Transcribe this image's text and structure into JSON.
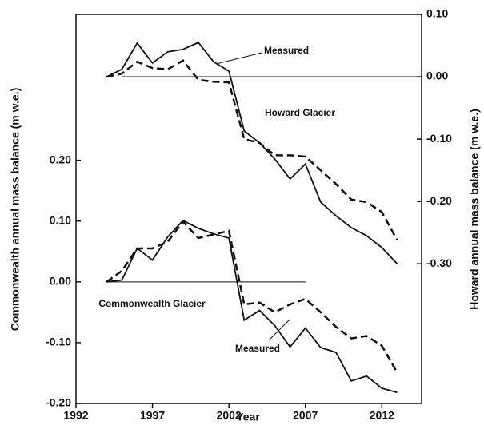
{
  "chart_data": {
    "type": "line",
    "x_label": "Year",
    "y_label": "Commonwealth annual mass balance (m w.e.)",
    "y2_label": "Howard  annual mass balance (m w.e.)",
    "x": [
      1994,
      1995,
      1996,
      1997,
      1998,
      1999,
      2000,
      2001,
      2002,
      2003,
      2004,
      2005,
      2006,
      2007,
      2008,
      2009,
      2010,
      2011,
      2012,
      2013
    ],
    "series": [
      {
        "color": "#111111",
        "dash": false,
        "axis": "y2",
        "values": [
          0.0,
          0.012,
          0.054,
          0.022,
          0.04,
          0.044,
          0.055,
          0.024,
          0.009,
          -0.087,
          -0.106,
          -0.132,
          -0.164,
          -0.14,
          -0.201,
          -0.223,
          -0.242,
          -0.255,
          -0.274,
          -0.3
        ]
      },
      {
        "color": "#111111",
        "dash": true,
        "axis": "y2",
        "values": [
          0.0,
          0.005,
          0.024,
          0.014,
          0.012,
          0.026,
          -0.005,
          -0.008,
          -0.009,
          -0.1,
          -0.106,
          -0.126,
          -0.126,
          -0.128,
          -0.15,
          -0.172,
          -0.197,
          -0.201,
          -0.217,
          -0.262
        ]
      },
      {
        "color": "#111111",
        "dash": false,
        "axis": "y",
        "values": [
          0.0,
          0.003,
          0.055,
          0.036,
          0.074,
          0.101,
          0.088,
          0.079,
          0.072,
          -0.063,
          -0.047,
          -0.072,
          -0.107,
          -0.076,
          -0.108,
          -0.116,
          -0.163,
          -0.155,
          -0.175,
          -0.182
        ]
      },
      {
        "color": "#111111",
        "dash": true,
        "axis": "y",
        "values": [
          0.0,
          0.018,
          0.055,
          0.055,
          0.066,
          0.099,
          0.072,
          0.078,
          0.084,
          -0.037,
          -0.034,
          -0.05,
          -0.037,
          -0.028,
          -0.05,
          -0.074,
          -0.093,
          -0.089,
          -0.105,
          -0.149
        ]
      }
    ],
    "reference_lines": [
      {
        "axis": "y2",
        "value": 0,
        "from": 1995,
        "to": 2014.6
      },
      {
        "axis": "y",
        "value": 0,
        "from": 1994,
        "to": 2007
      }
    ],
    "annotations": [
      "Measured",
      "Howard Glacier",
      "Commonwealth Glacier",
      "Measured"
    ],
    "xlim": [
      1992,
      2014.6
    ],
    "xticks": [
      1992,
      1997,
      2002,
      2007,
      2012
    ],
    "ylim": [
      -0.2,
      0.44
    ],
    "yticks": [
      {
        "value": -0.2,
        "label": "-0.20"
      },
      {
        "value": -0.1,
        "label": "-0.10"
      },
      {
        "value": 0,
        "label": "0.00"
      },
      {
        "value": 0.1,
        "label": "0.10"
      },
      {
        "value": 0.2,
        "label": "0.20"
      }
    ],
    "y2lim": [
      -0.524,
      0.1
    ],
    "y2ticks": [
      {
        "value": -0.3,
        "label": "-0.30"
      },
      {
        "value": -0.2,
        "label": "-0.20"
      },
      {
        "value": -0.1,
        "label": "-0.10"
      },
      {
        "value": 0,
        "label": "0.00"
      },
      {
        "value": 0.1,
        "label": "0.10"
      }
    ],
    "grid": false
  }
}
